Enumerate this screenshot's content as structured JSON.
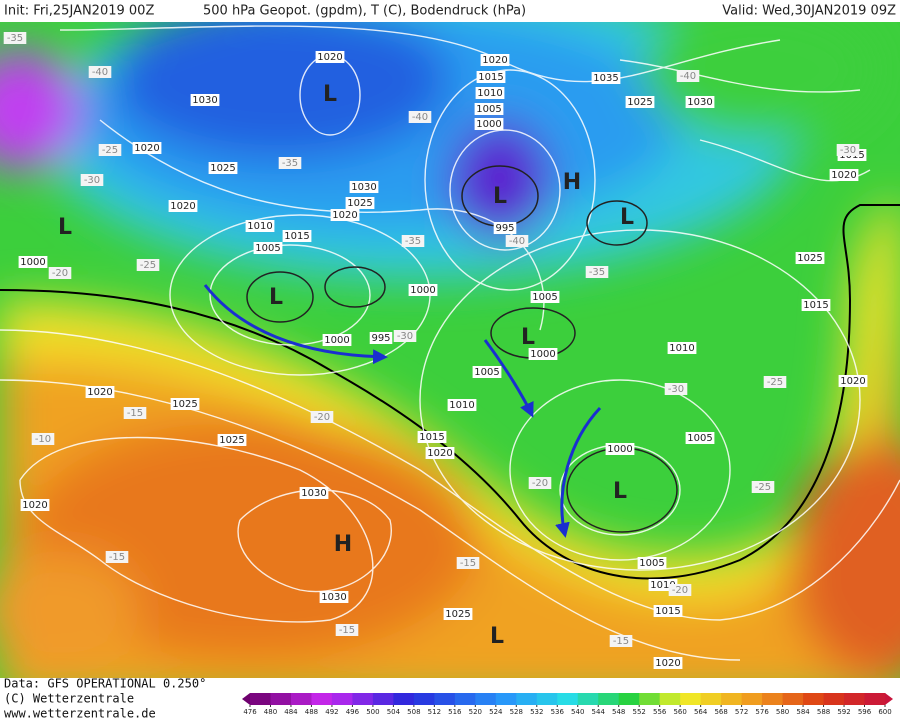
{
  "header": {
    "init": "Init: Fri,25JAN2019 00Z",
    "title": "500 hPa Geopot. (gpdm), T (C), Bodendruck (hPa)",
    "valid": "Valid: Wed,30JAN2019 09Z"
  },
  "footer": {
    "data": "Data: GFS OPERATIONAL 0.250°",
    "copyright": "(C) Wetterzentrale",
    "url": "www.wetterzentrale.de"
  },
  "pressure_centers": [
    "L",
    "L",
    "L",
    "L",
    "L",
    "L",
    "L",
    "H",
    "H",
    "L"
  ],
  "isobar_labels": [
    "1020",
    "1030",
    "1020",
    "1025",
    "1020",
    "1030",
    "1025",
    "1020",
    "1010",
    "1015",
    "1005",
    "1000",
    "1000",
    "1000",
    "995",
    "995",
    "1020",
    "1015",
    "1010",
    "1005",
    "1000",
    "1035",
    "1025",
    "1030",
    "1015",
    "1020",
    "1025",
    "1015",
    "1020",
    "1010",
    "1005",
    "1000",
    "1005",
    "1010",
    "1015",
    "1020",
    "1005",
    "1000",
    "1025",
    "1025",
    "1020",
    "1020",
    "1030",
    "1030",
    "1025",
    "1005",
    "1010",
    "1015",
    "1020"
  ],
  "temperature_labels": [
    "-40",
    "-40",
    "-35",
    "-40",
    "-35",
    "-35",
    "-40",
    "-35",
    "-30",
    "-30",
    "-25",
    "-25",
    "-20",
    "-30",
    "-30",
    "-25",
    "-25",
    "-15",
    "-20",
    "-10",
    "-15",
    "-15",
    "-15",
    "-15",
    "-20",
    "-20"
  ],
  "colorbar": {
    "ticks": [
      476,
      480,
      484,
      488,
      492,
      496,
      500,
      504,
      508,
      512,
      516,
      520,
      524,
      528,
      532,
      536,
      540,
      544,
      548,
      552,
      556,
      560,
      564,
      568,
      572,
      576,
      580,
      584,
      588,
      592,
      596,
      600
    ]
  }
}
